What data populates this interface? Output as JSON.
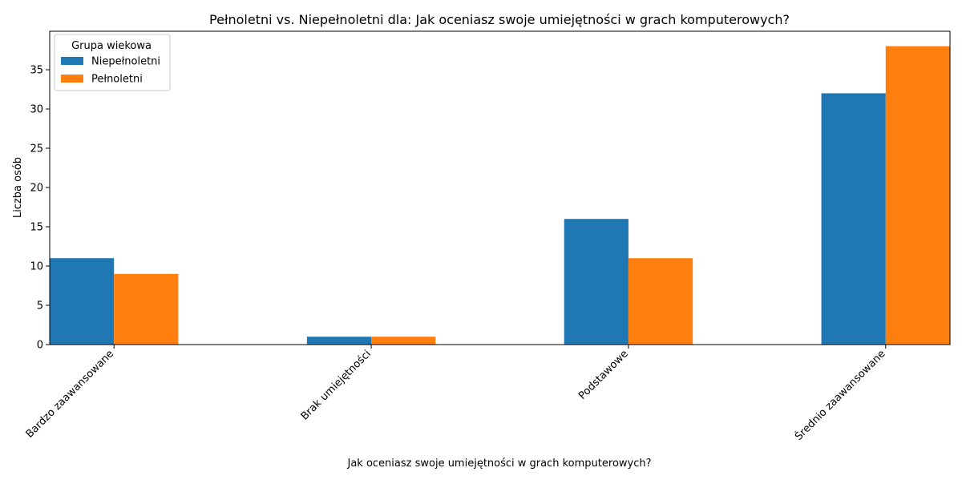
{
  "chart_data": {
    "type": "bar",
    "title": "Pełnoletni vs. Niepełnoletni dla: Jak oceniasz swoje umiejętności w grach komputerowych?",
    "xlabel": "Jak oceniasz swoje umiejętności w grach komputerowych?",
    "ylabel": "Liczba osób",
    "categories": [
      "Bardzo zaawansowane",
      "Brak umiejętności",
      "Podstawowe",
      "Średnio zaawansowane"
    ],
    "series": [
      {
        "name": "Niepełnoletni",
        "values": [
          11,
          1,
          16,
          32
        ],
        "color": "#1f77b4"
      },
      {
        "name": "Pełnoletni",
        "values": [
          9,
          1,
          11,
          38
        ],
        "color": "#ff7f0e"
      }
    ],
    "ylim": [
      0,
      39.9
    ],
    "yticks": [
      0,
      5,
      10,
      15,
      20,
      25,
      30,
      35
    ],
    "legend": {
      "title": "Grupa wiekowa",
      "placement": "top-left"
    },
    "grid": false
  }
}
